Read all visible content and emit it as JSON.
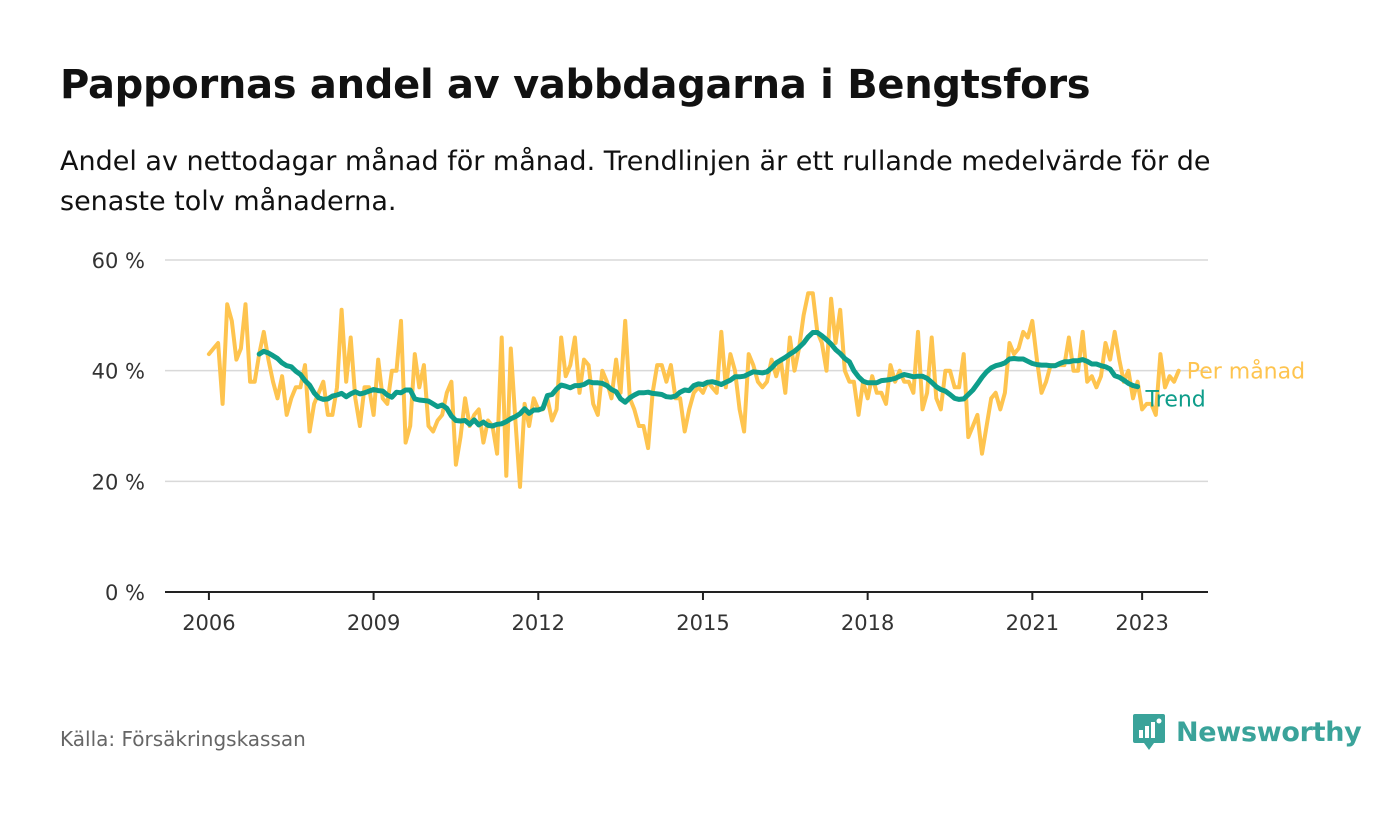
{
  "header": {
    "title": "Pappornas andel av vabbdagarna i Bengtsfors",
    "subtitle": "Andel av nettodagar månad för månad. Trendlinjen är ett rullande medelvärde för de senaste tolv månaderna."
  },
  "footer": {
    "source": "Källa: Försäkringskassan"
  },
  "brand": {
    "name": "Newsworthy",
    "icon": "newsworthy-logo-icon",
    "color": "#3aa39a"
  },
  "chart_data": {
    "type": "line",
    "x_unit": "year",
    "xlim": [
      2005.2,
      2024.2
    ],
    "ylim": [
      0,
      60
    ],
    "yticks": [
      0,
      20,
      40,
      60
    ],
    "ytick_labels": [
      "0 %",
      "20 %",
      "40 %",
      "60 %"
    ],
    "xticks": [
      2006,
      2009,
      2012,
      2015,
      2018,
      2021,
      2023
    ],
    "xtick_labels": [
      "2006",
      "2009",
      "2012",
      "2015",
      "2018",
      "2021",
      "2023"
    ],
    "grid": true,
    "legend": "inline-right",
    "series": [
      {
        "name": "Per månad",
        "color": "#fec44f",
        "x_start": 2006.0,
        "x_step": 0.0833333,
        "values": [
          43,
          44,
          45,
          34,
          52,
          49,
          42,
          44,
          52,
          38,
          38,
          43,
          47,
          42,
          38,
          35,
          39,
          32,
          35,
          37,
          37,
          41,
          29,
          34,
          36,
          38,
          32,
          32,
          37,
          51,
          38,
          46,
          35,
          30,
          37,
          37,
          32,
          42,
          35,
          34,
          40,
          40,
          49,
          27,
          30,
          43,
          37,
          41,
          30,
          29,
          31,
          32,
          36,
          38,
          23,
          28,
          35,
          30,
          32,
          33,
          27,
          31,
          30,
          25,
          46,
          21,
          44,
          31,
          19,
          34,
          30,
          35,
          33,
          33,
          35,
          31,
          33,
          46,
          39,
          41,
          46,
          36,
          42,
          41,
          34,
          32,
          40,
          38,
          35,
          42,
          36,
          49,
          35,
          33,
          30,
          30,
          26,
          36,
          41,
          41,
          38,
          41,
          35,
          35,
          29,
          33,
          36,
          37,
          36,
          38,
          37,
          36,
          47,
          37,
          43,
          40,
          33,
          29,
          43,
          41,
          38,
          37,
          38,
          42,
          39,
          42,
          36,
          46,
          40,
          44,
          50,
          54,
          54,
          47,
          45,
          40,
          53,
          45,
          51,
          40,
          38,
          38,
          32,
          38,
          35,
          39,
          36,
          36,
          34,
          41,
          38,
          40,
          38,
          38,
          36,
          47,
          33,
          36,
          46,
          35,
          33,
          40,
          40,
          37,
          37,
          43,
          28,
          30,
          32,
          25,
          30,
          35,
          36,
          33,
          36,
          45,
          43,
          44,
          47,
          46,
          49,
          42,
          36,
          38,
          41,
          41,
          41,
          41,
          46,
          40,
          40,
          47,
          38,
          39,
          37,
          39,
          45,
          42,
          47,
          42,
          38,
          40,
          35,
          38,
          33,
          34,
          34,
          32,
          43,
          37,
          39,
          38,
          40
        ]
      },
      {
        "name": "Trend",
        "color": "#0e9d8a",
        "x_start": 2006.9167,
        "x_step": 0.0833333,
        "values": [
          43,
          43.5,
          43.2,
          42.7,
          42.2,
          41.4,
          40.9,
          40.7,
          39.9,
          39.3,
          38.2,
          37.4,
          36,
          35.1,
          34.8,
          34.9,
          35.4,
          35.6,
          35.9,
          35.3,
          35.8,
          36.2,
          35.8,
          36,
          36.3,
          36.6,
          36.4,
          36.3,
          35.6,
          35.2,
          36.1,
          36,
          36.5,
          36.5,
          34.9,
          34.7,
          34.6,
          34.5,
          34,
          33.5,
          33.8,
          33.2,
          31.8,
          31,
          30.9,
          31,
          30.3,
          31.1,
          30.2,
          30.7,
          30.1,
          30,
          30.3,
          30.4,
          30.8,
          31.3,
          31.7,
          32.2,
          33.1,
          32.3,
          32.9,
          32.9,
          33.2,
          35.5,
          35.7,
          36.7,
          37.4,
          37.2,
          36.9,
          37.3,
          37.3,
          37.5,
          38,
          37.8,
          37.8,
          37.7,
          37.3,
          36.6,
          36.2,
          34.9,
          34.3,
          35.1,
          35.6,
          36,
          36,
          36.1,
          35.9,
          35.8,
          35.7,
          35.3,
          35.2,
          35.4,
          36.1,
          36.5,
          36.4,
          37.3,
          37.6,
          37.5,
          37.9,
          38,
          37.8,
          37.5,
          37.9,
          38.3,
          38.9,
          38.9,
          39,
          39.4,
          39.8,
          39.7,
          39.6,
          39.8,
          40.5,
          41.4,
          41.9,
          42.4,
          43,
          43.5,
          44.2,
          45,
          46.1,
          46.9,
          46.9,
          46.3,
          45.6,
          44.8,
          43.8,
          43.1,
          42.2,
          41.6,
          40,
          38.9,
          38.1,
          37.8,
          37.8,
          37.8,
          38.2,
          38.3,
          38.4,
          38.6,
          39,
          39.3,
          39.1,
          38.9,
          39,
          39,
          38.6,
          37.9,
          37.1,
          36.6,
          36.3,
          35.7,
          35,
          34.8,
          34.9,
          35.7,
          36.5,
          37.6,
          38.8,
          39.8,
          40.5,
          40.9,
          41.1,
          41.4,
          42.1,
          42.2,
          42.1,
          42.1,
          41.7,
          41.3,
          41.1,
          41,
          41,
          40.9,
          40.9,
          41.3,
          41.6,
          41.6,
          41.8,
          41.8,
          42,
          41.7,
          41.2,
          41.2,
          40.9,
          40.7,
          40.3,
          39.1,
          38.8,
          38.3,
          37.7,
          37.3,
          37.1
        ]
      }
    ]
  }
}
